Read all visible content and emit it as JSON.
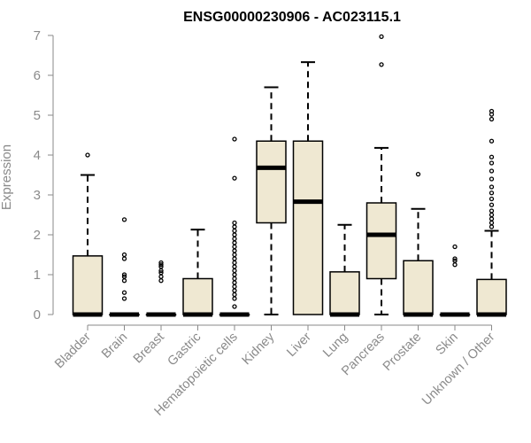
{
  "chart_data": {
    "type": "boxplot",
    "title": "ENSG00000230906 - AC023115.1",
    "xlabel": "",
    "ylabel": "Expression",
    "ylim": [
      0,
      7
    ],
    "yticks": [
      0,
      1,
      2,
      3,
      4,
      5,
      6,
      7
    ],
    "colors": {
      "box_fill": "#efe8d2",
      "stroke": "#000000",
      "axis": "#8a8a8a"
    },
    "categories": [
      "Bladder",
      "Brain",
      "Breast",
      "Gastric",
      "Hematopoietic cells",
      "Kidney",
      "Liver",
      "Lung",
      "Pancreas",
      "Prostate",
      "Skin",
      "Unknown / Other"
    ],
    "boxes": [
      {
        "category": "Bladder",
        "min": 0,
        "q1": 0,
        "median": 0,
        "q3": 1.47,
        "max": 3.5,
        "outliers": [
          4.0
        ]
      },
      {
        "category": "Brain",
        "min": 0,
        "q1": 0,
        "median": 0,
        "q3": 0,
        "max": 0,
        "outliers": [
          0.4,
          0.55,
          0.85,
          0.95,
          1.0,
          1.4,
          1.5,
          2.38
        ]
      },
      {
        "category": "Breast",
        "min": 0,
        "q1": 0,
        "median": 0,
        "q3": 0,
        "max": 0,
        "outliers": [
          0.85,
          0.95,
          1.05,
          1.1,
          1.2,
          1.25,
          1.3
        ]
      },
      {
        "category": "Gastric",
        "min": 0,
        "q1": 0,
        "median": 0,
        "q3": 0.9,
        "max": 2.13,
        "outliers": []
      },
      {
        "category": "Hematopoietic cells",
        "min": 0,
        "q1": 0,
        "median": 0,
        "q3": 0,
        "max": 0,
        "outliers": [
          0.2,
          0.4,
          0.5,
          0.6,
          0.7,
          0.8,
          0.9,
          1.0,
          1.1,
          1.2,
          1.3,
          1.4,
          1.5,
          1.6,
          1.7,
          1.8,
          1.9,
          2.0,
          2.1,
          2.2,
          2.3,
          3.42,
          4.4
        ]
      },
      {
        "category": "Kidney",
        "min": 0,
        "q1": 2.3,
        "median": 3.68,
        "q3": 4.35,
        "max": 5.7,
        "outliers": []
      },
      {
        "category": "Liver",
        "min": 0,
        "q1": 0,
        "median": 2.83,
        "q3": 4.35,
        "max": 6.33,
        "outliers": []
      },
      {
        "category": "Lung",
        "min": 0,
        "q1": 0,
        "median": 0,
        "q3": 1.07,
        "max": 2.25,
        "outliers": []
      },
      {
        "category": "Pancreas",
        "min": 0,
        "q1": 0.9,
        "median": 2.0,
        "q3": 2.8,
        "max": 4.18,
        "outliers": [
          6.27,
          6.97
        ]
      },
      {
        "category": "Prostate",
        "min": 0,
        "q1": 0,
        "median": 0,
        "q3": 1.35,
        "max": 2.65,
        "outliers": [
          3.52
        ]
      },
      {
        "category": "Skin",
        "min": 0,
        "q1": 0,
        "median": 0,
        "q3": 0,
        "max": 0,
        "outliers": [
          1.25,
          1.35,
          1.4,
          1.7
        ]
      },
      {
        "category": "Unknown / Other",
        "min": 0,
        "q1": 0,
        "median": 0,
        "q3": 0.88,
        "max": 2.1,
        "outliers": [
          2.2,
          2.3,
          2.4,
          2.5,
          2.6,
          2.75,
          2.9,
          3.05,
          3.2,
          3.4,
          3.6,
          3.8,
          3.95,
          4.35,
          4.9,
          5.02,
          5.1
        ]
      }
    ]
  }
}
